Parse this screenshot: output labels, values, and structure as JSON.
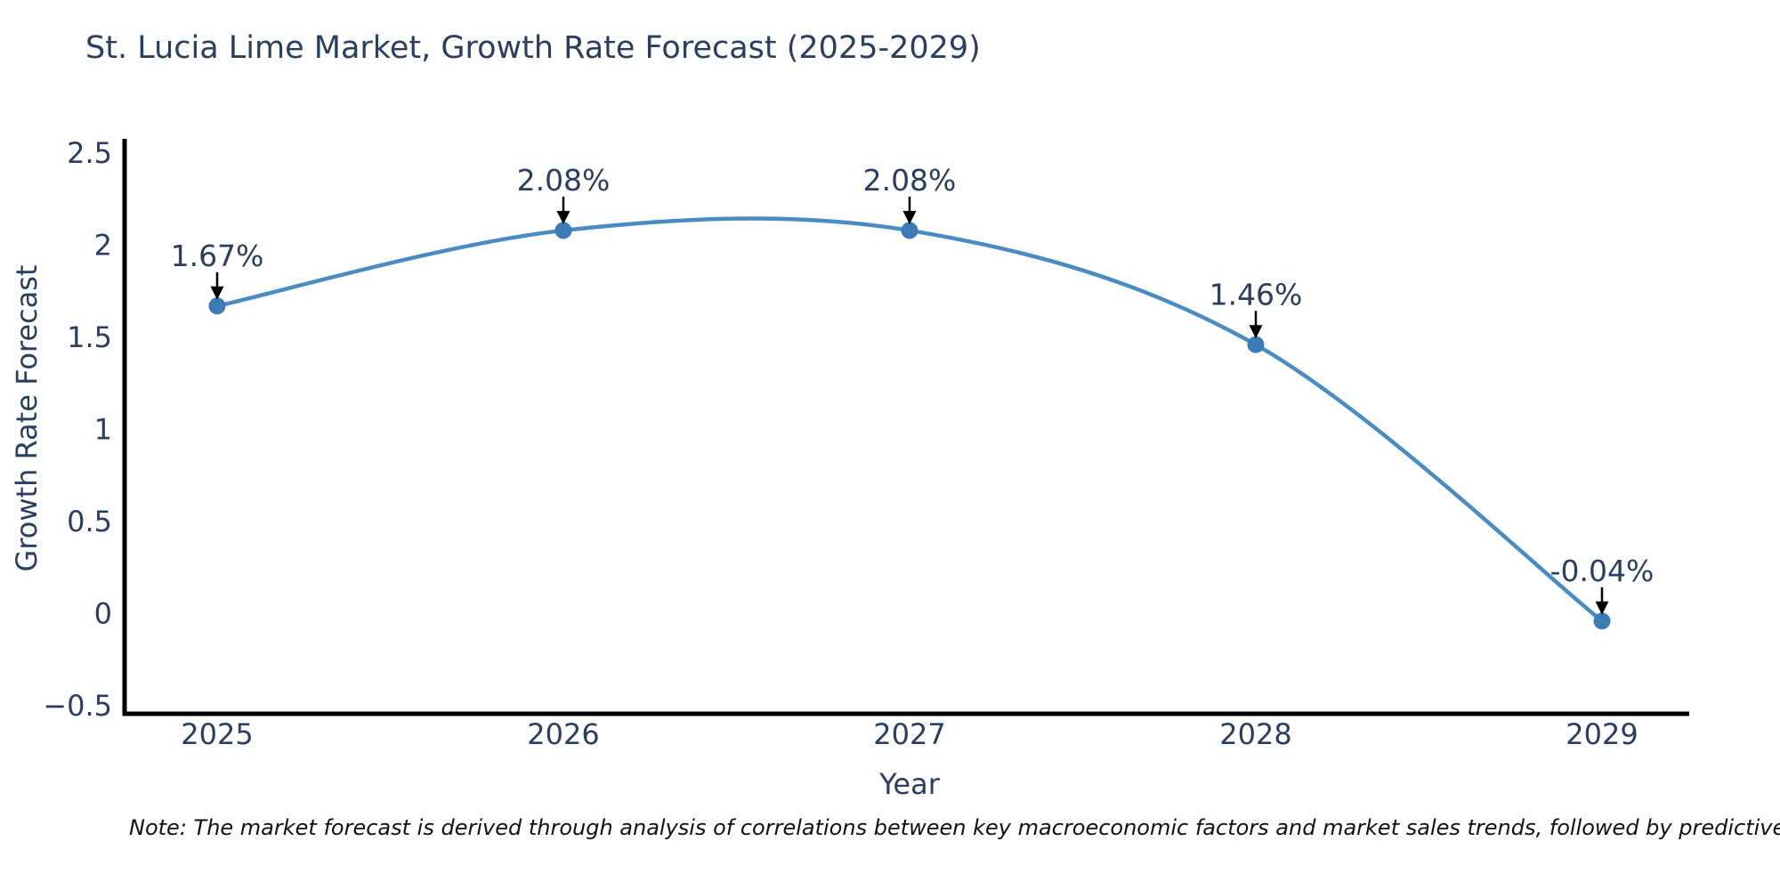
{
  "figure": {
    "title": "St. Lucia Lime Market, Growth Rate Forecast (2025-2029)",
    "x_axis_label": "Year",
    "y_axis_label": "Growth Rate Forecast",
    "note": "Note: The market forecast is derived through analysis of correlations between key macroeconomic factors and market sales trends, followed by predictive modeling to project future sa"
  },
  "chart_data": {
    "type": "line",
    "title": "St. Lucia Lime Market, Growth Rate Forecast (2025-2029)",
    "xlabel": "Year",
    "ylabel": "Growth Rate Forecast",
    "x": [
      2025,
      2026,
      2027,
      2028,
      2029
    ],
    "values": [
      1.67,
      2.08,
      2.08,
      1.46,
      -0.04
    ],
    "point_labels": [
      "1.67%",
      "2.08%",
      "2.08%",
      "1.46%",
      "-0.04%"
    ],
    "x_tick_labels": [
      "2025",
      "2026",
      "2027",
      "2028",
      "2029"
    ],
    "y_ticks": [
      2.5,
      2,
      1.5,
      1,
      0.5,
      0,
      -0.5
    ],
    "y_tick_labels": [
      "2.5",
      "2",
      "1.5",
      "1",
      "0.5",
      "0",
      "−0.5"
    ],
    "xlim": [
      2024.73,
      2029.25
    ],
    "ylim": [
      -0.55,
      2.6
    ],
    "line_shape": "spline",
    "grid": false,
    "legend": false,
    "annotations_have_arrows": true,
    "colors": {
      "line": "#4a8bc2",
      "marker": "#3b7cb8",
      "axis_line": "#000000",
      "text": "#2a3f5f",
      "arrow": "#000000"
    }
  }
}
